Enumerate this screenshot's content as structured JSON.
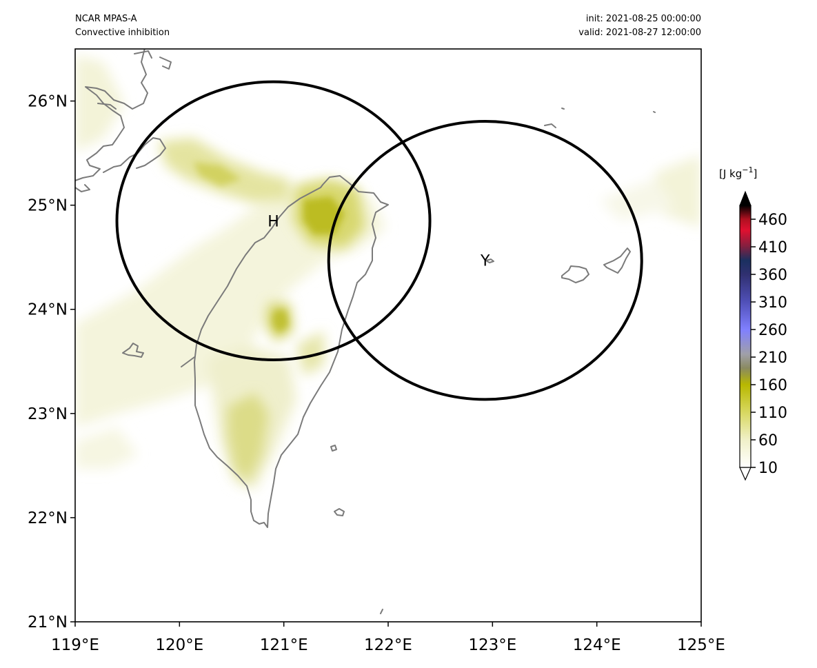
{
  "header": {
    "model": "NCAR MPAS-A",
    "field": "Convective inhibition",
    "init": "init: 2021-08-25 00:00:00",
    "valid": "valid: 2021-08-27 12:00:00"
  },
  "map": {
    "lon_range": [
      119,
      125
    ],
    "lat_range": [
      21,
      26.5
    ],
    "lon_ticks": [
      {
        "value": 119,
        "label": "119°E"
      },
      {
        "value": 120,
        "label": "120°E"
      },
      {
        "value": 121,
        "label": "121°E"
      },
      {
        "value": 122,
        "label": "122°E"
      },
      {
        "value": 123,
        "label": "123°E"
      },
      {
        "value": 124,
        "label": "124°E"
      },
      {
        "value": 125,
        "label": "125°E"
      }
    ],
    "lat_ticks": [
      {
        "value": 21,
        "label": "21°N"
      },
      {
        "value": 22,
        "label": "22°N"
      },
      {
        "value": 23,
        "label": "23°N"
      },
      {
        "value": 24,
        "label": "24°N"
      },
      {
        "value": 25,
        "label": "25°N"
      },
      {
        "value": 26,
        "label": "26°N"
      }
    ],
    "markers": [
      {
        "label": "H",
        "lon": 120.9,
        "lat": 24.85,
        "radius_deg": 1.5
      },
      {
        "label": "Y",
        "lon": 122.93,
        "lat": 24.47,
        "radius_deg": 1.5
      }
    ],
    "colors": {
      "coastline": "#7a7a7a",
      "circle": "#000000"
    }
  },
  "colorbar": {
    "units_prefix": "[J kg",
    "units_exp": "−1",
    "units_suffix": "]",
    "range": [
      10,
      485
    ],
    "ticks": [
      {
        "value": 10,
        "label": "10"
      },
      {
        "value": 60,
        "label": "60"
      },
      {
        "value": 110,
        "label": "110"
      },
      {
        "value": 160,
        "label": "160"
      },
      {
        "value": 210,
        "label": "210"
      },
      {
        "value": 260,
        "label": "260"
      },
      {
        "value": 310,
        "label": "310"
      },
      {
        "value": 360,
        "label": "360"
      },
      {
        "value": 410,
        "label": "410"
      },
      {
        "value": 460,
        "label": "460"
      }
    ],
    "stops": [
      {
        "value": 10,
        "color": "#ffffff"
      },
      {
        "value": 60,
        "color": "#f0f0c8"
      },
      {
        "value": 110,
        "color": "#d8d860"
      },
      {
        "value": 160,
        "color": "#b8b800"
      },
      {
        "value": 190,
        "color": "#8a8a60"
      },
      {
        "value": 215,
        "color": "#a0a0a8"
      },
      {
        "value": 260,
        "color": "#8080ff"
      },
      {
        "value": 310,
        "color": "#5050b8"
      },
      {
        "value": 360,
        "color": "#303070"
      },
      {
        "value": 385,
        "color": "#1a3060"
      },
      {
        "value": 410,
        "color": "#802040"
      },
      {
        "value": 440,
        "color": "#e01030"
      },
      {
        "value": 460,
        "color": "#b01020"
      },
      {
        "value": 485,
        "color": "#000000"
      }
    ]
  }
}
